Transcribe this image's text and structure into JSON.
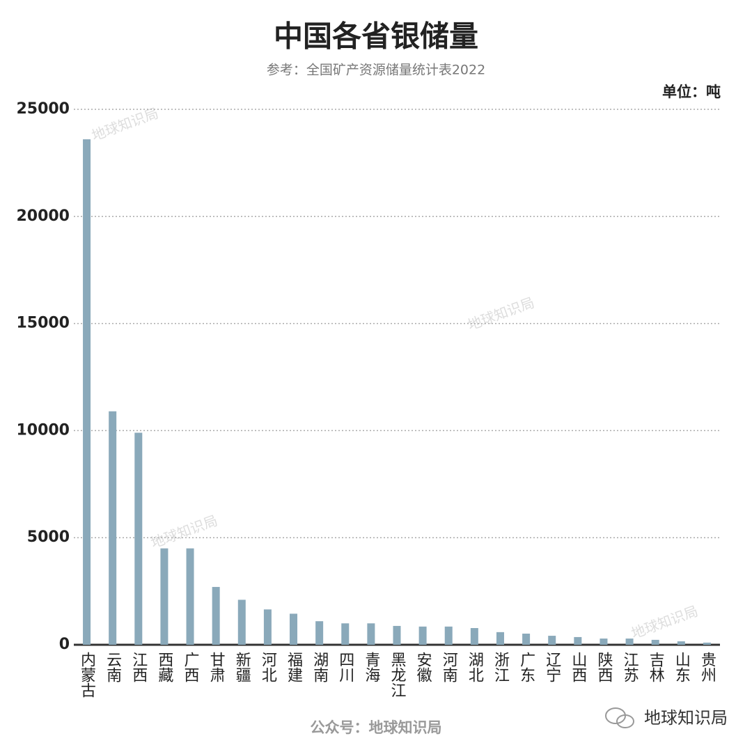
{
  "chart_data": {
    "type": "bar",
    "title": "中国各省银储量",
    "subtitle": "参考：全国矿产资源储量统计表2022",
    "unit": "单位：吨",
    "footer": "公众号：地球知识局",
    "watermark": "地球知识局",
    "categories": [
      "内蒙古",
      "云南",
      "江西",
      "西藏",
      "广西",
      "甘肃",
      "新疆",
      "河北",
      "福建",
      "湖南",
      "四川",
      "青海",
      "黑龙江",
      "安徽",
      "河南",
      "湖北",
      "浙江",
      "广东",
      "辽宁",
      "山西",
      "陕西",
      "江苏",
      "吉林",
      "山东",
      "贵州"
    ],
    "values": [
      23600,
      10900,
      9900,
      4500,
      4500,
      2700,
      2100,
      1650,
      1450,
      1100,
      1000,
      1000,
      880,
      850,
      850,
      780,
      590,
      520,
      420,
      360,
      290,
      290,
      230,
      160,
      100
    ],
    "color": "#8aa9ba",
    "ylim": [
      0,
      25000
    ],
    "yticks": [
      0,
      5000,
      10000,
      15000,
      20000,
      25000
    ],
    "grid": true
  }
}
